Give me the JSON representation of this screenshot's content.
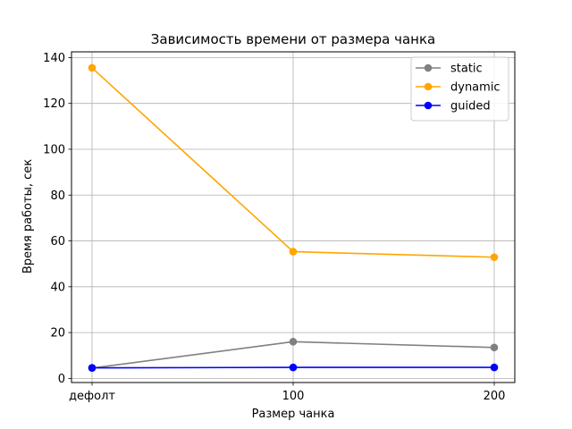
{
  "chart_data": {
    "type": "line",
    "title": "Зависимость времени от размера чанка",
    "xlabel": "Размер чанка",
    "ylabel": "Время работы, сек",
    "categories": [
      "дефолт",
      "100",
      "200"
    ],
    "ylim": [
      -1.8,
      142.5
    ],
    "yticks": [
      0,
      20,
      40,
      60,
      80,
      100,
      120,
      140
    ],
    "grid": true,
    "legend_position": "top-right",
    "series": [
      {
        "name": "static",
        "color": "#808080",
        "values": [
          4.5,
          16.0,
          13.5
        ]
      },
      {
        "name": "dynamic",
        "color": "#ffa500",
        "values": [
          135.5,
          55.3,
          52.9
        ]
      },
      {
        "name": "guided",
        "color": "#0000ff",
        "values": [
          4.6,
          4.8,
          4.8
        ]
      }
    ]
  }
}
